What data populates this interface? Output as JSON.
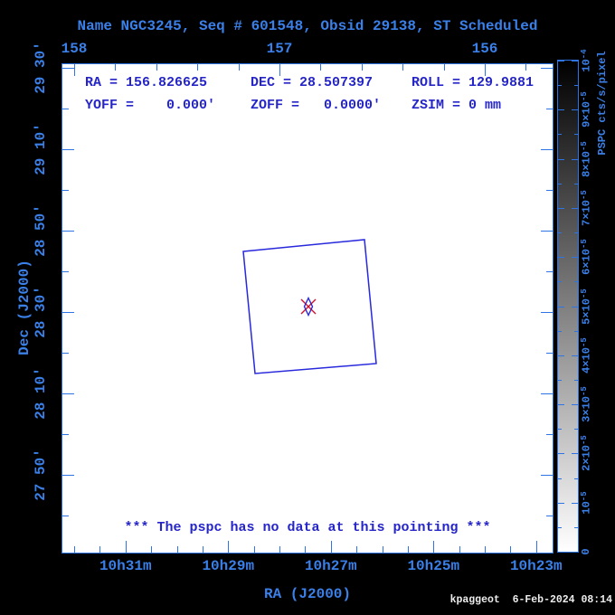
{
  "title": "Name NGC3245, Seq # 601548, Obsid 29138, ST Scheduled",
  "header": {
    "items": [
      "RA = 156.826625",
      "DEC = 28.507397",
      "ROLL = 129.9881",
      "YOFF =    0.000'",
      "ZOFF =   0.0000'",
      "ZSIM = 0 mm"
    ]
  },
  "message": "*** The pspc has no data at this pointing ***",
  "footer": {
    "credit": "kpaggeot  6-Feb-2024 08:14"
  },
  "axes": {
    "top": {
      "tick_labels": [
        "158",
        "157",
        "156"
      ],
      "tick_values_deg": [
        158,
        157,
        156
      ],
      "minor_step_deg": 0.2
    },
    "bottom": {
      "title": "RA (J2000)",
      "tick_labels": [
        "10h31m",
        "10h29m",
        "10h27m",
        "10h25m",
        "10h23m"
      ],
      "tick_values_deg": [
        157.75,
        157.25,
        156.75,
        156.25,
        155.75
      ],
      "minor_step_deg": 0.125
    },
    "left": {
      "title": "Dec (J2000)",
      "tick_labels": [
        "29 30'",
        "29 10'",
        "28 50'",
        "28 30'",
        "28 10'",
        "27 50'"
      ],
      "tick_values_deg": [
        29.5,
        29.16667,
        28.83333,
        28.5,
        28.16667,
        27.83333
      ],
      "minor_step_deg": 0.16667
    }
  },
  "colorbar": {
    "title": "PSPC cts/s/pixel",
    "tick_labels": [
      "10^-4",
      "9×10^-5",
      "8×10^-5",
      "7×10^-5",
      "6×10^-5",
      "5×10^-5",
      "4×10^-5",
      "3×10^-5",
      "2×10^-5",
      "10^-5",
      "0"
    ],
    "gradient_top": "#000000",
    "gradient_bottom": "#ffffff"
  },
  "colors": {
    "background": "#000000",
    "plot_bg": "#ffffff",
    "axis_blue": "#2e74e4",
    "label_blue": "#3a80e8",
    "text_blue": "#2525c8",
    "box_blue": "#2828dd",
    "diamond_blue": "#2a2ad0",
    "marker_red": "#d01030",
    "footer_white": "#ededed"
  },
  "chart_data": {
    "type": "scatter",
    "title": "Name NGC3245, Seq # 601548, Obsid 29138, ST Scheduled",
    "xlabel": "RA (J2000)",
    "ylabel": "Dec (J2000)",
    "x_range_deg": [
      158.06,
      155.66
    ],
    "y_range_deg": [
      27.51,
      29.52
    ],
    "x_ticks_top_deg": [
      158,
      157,
      156
    ],
    "x_ticks_bottom": [
      "10h31m",
      "10h29m",
      "10h27m",
      "10h25m",
      "10h23m"
    ],
    "y_ticks": [
      "29 30'",
      "29 10'",
      "28 50'",
      "28 30'",
      "28 10'",
      "27 50'"
    ],
    "grid": false,
    "pointing": {
      "name": "NGC3245",
      "seq": "601548",
      "obsid": "29138",
      "status": "ST Scheduled",
      "ra_deg": 156.826625,
      "dec_deg": 28.507397,
      "roll_deg": 129.9881,
      "yoff_arcmin": 0.0,
      "zoff_arcmin": 0.0,
      "zsim_mm": 0
    },
    "fov_box_deg": {
      "center_ra": 156.8266,
      "center_dec": 28.5074,
      "width": 0.63,
      "height": 0.63,
      "rotation_deg": -5.5
    },
    "marker": {
      "ra_deg": 156.8266,
      "dec_deg": 28.5074,
      "symbols": [
        "red-x",
        "blue-diamond"
      ]
    },
    "colorbar": {
      "title": "PSPC cts/s/pixel",
      "range_cts_s_pixel": [
        0,
        0.0001
      ],
      "tick_labels": [
        "10^-4",
        "9×10^-5",
        "8×10^-5",
        "7×10^-5",
        "6×10^-5",
        "5×10^-5",
        "4×10^-5",
        "3×10^-5",
        "2×10^-5",
        "10^-5",
        "0"
      ]
    },
    "annotation": "*** The pspc has no data at this pointing ***"
  }
}
